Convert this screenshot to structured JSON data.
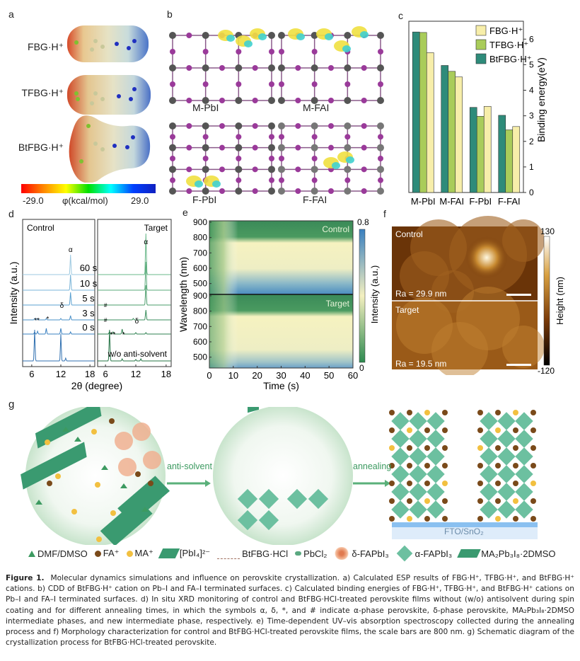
{
  "panels": {
    "a": {
      "letter": "a",
      "molecules": [
        "FBG·H⁺",
        "TFBG·H⁺",
        "BtFBG·H⁺"
      ],
      "colorbar": {
        "min_label": "-29.0",
        "max_label": "29.0",
        "title": "φ(kcal/mol)",
        "min": -29.0,
        "max": 29.0
      }
    },
    "b": {
      "letter": "b",
      "subpanels": [
        "M-PbI",
        "M-FAI",
        "F-PbI",
        "F-FAI"
      ]
    },
    "c": {
      "letter": "c"
    },
    "d": {
      "letter": "d",
      "left_title": "Control",
      "right_title": "Target",
      "ylabel": "Intensity (a.u.)",
      "xlabel": "2θ (degree)",
      "xticks_left": [
        "6",
        "12",
        "18"
      ],
      "xticks_right": [
        "6",
        "12",
        "18"
      ],
      "traces": [
        "60 s",
        "10 s",
        "5 s",
        "3 s",
        "0 s",
        "w/o anti-solvent"
      ],
      "symbols": {
        "alpha": "α",
        "delta": "δ",
        "star": "*",
        "hash": "#"
      }
    },
    "e": {
      "letter": "e",
      "top_title": "Control",
      "bottom_title": "Target",
      "ylabel": "Wavelength (nm)",
      "xlabel": "Time (s)",
      "yticks": [
        "900",
        "800",
        "700",
        "600",
        "500"
      ],
      "xticks": [
        "0",
        "10",
        "20",
        "30",
        "40",
        "50",
        "60"
      ],
      "colorbar": {
        "title": "Intensity (a.u.)",
        "max_label": "0.8",
        "min_label": "0"
      }
    },
    "f": {
      "letter": "f",
      "top_title": "Control",
      "top_ra": "Ra = 29.9 nm",
      "bottom_title": "Target",
      "bottom_ra": "Ra = 19.5 nm",
      "colorbar": {
        "title": "Height (nm)",
        "max_label": "130",
        "min_label": "-120"
      }
    },
    "g": {
      "letter": "g",
      "arrow1": "anti-solvent",
      "arrow2": "annealing",
      "substrate": "FTO/SnO₂",
      "legend": [
        "DMF/DMSO",
        "FA⁺",
        "MA⁺",
        "[PbI₄]²⁻",
        "BtFBG·HCl",
        "PbCl₂",
        "δ-FAPbI₃",
        "α-FAPbI₃",
        "MA₂Pb₃I₈·2DMSO"
      ]
    }
  },
  "chart_data": [
    {
      "type": "bar",
      "panel": "c",
      "title": "",
      "categories": [
        "M-PbI",
        "M-FAI",
        "F-PbI",
        "F-FAI"
      ],
      "series": [
        {
          "name": "BtFBG·H⁺",
          "color": "#2e8b7a",
          "values": [
            6.28,
            4.97,
            3.33,
            3.02
          ]
        },
        {
          "name": "TFBG·H⁺",
          "color": "#a9cc5a",
          "values": [
            6.26,
            4.74,
            2.98,
            2.45
          ]
        },
        {
          "name": "FBG·H⁺",
          "color": "#f7eeaa",
          "values": [
            5.47,
            4.52,
            3.37,
            2.58
          ]
        }
      ],
      "legend_order": [
        "FBG·H⁺",
        "TFBG·H⁺",
        "BtFBG·H⁺"
      ],
      "xlabel": "",
      "ylabel": "Binding energy(eV)",
      "ylim": [
        0,
        6.7
      ],
      "yticks": [
        0,
        1,
        2,
        3,
        4,
        5,
        6
      ],
      "legend_position": "top-right",
      "grid": false
    }
  ],
  "caption": {
    "label": "Figure 1.",
    "text": "Molecular dynamics simulations and influence on perovskite crystallization. a) Calculated ESP results of FBG·H⁺, TFBG·H⁺, and BtFBG·H⁺ cations. b) CDD of BtFBG·H⁺ cation on Pb–I and FA–I terminated surfaces. c) Calculated binding energies of FBG·H⁺, TFBG·H⁺, and BtFBG·H⁺ cations on Pb–I and FA–I terminated surfaces. d) In situ XRD monitoring of control and BtFBG·HCl-treated perovskite films without (w/o) antisolvent during spin coating and for different annealing times, in which the symbols α, δ, *, and # indicate α-phase perovskite, δ-phase perovskite, MA₂Pb₃I₈·2DMSO intermediate phases, and new intermediate phase, respectively. e) Time-dependent UV–vis absorption spectroscopy collected during the annealing process and f) Morphology characterization for control and BtFBG·HCl-treated perovskite films, the scale bars are 800 nm. g) Schematic diagram of the crystallization process for BtFBG·HCl-treated perovskite."
  }
}
